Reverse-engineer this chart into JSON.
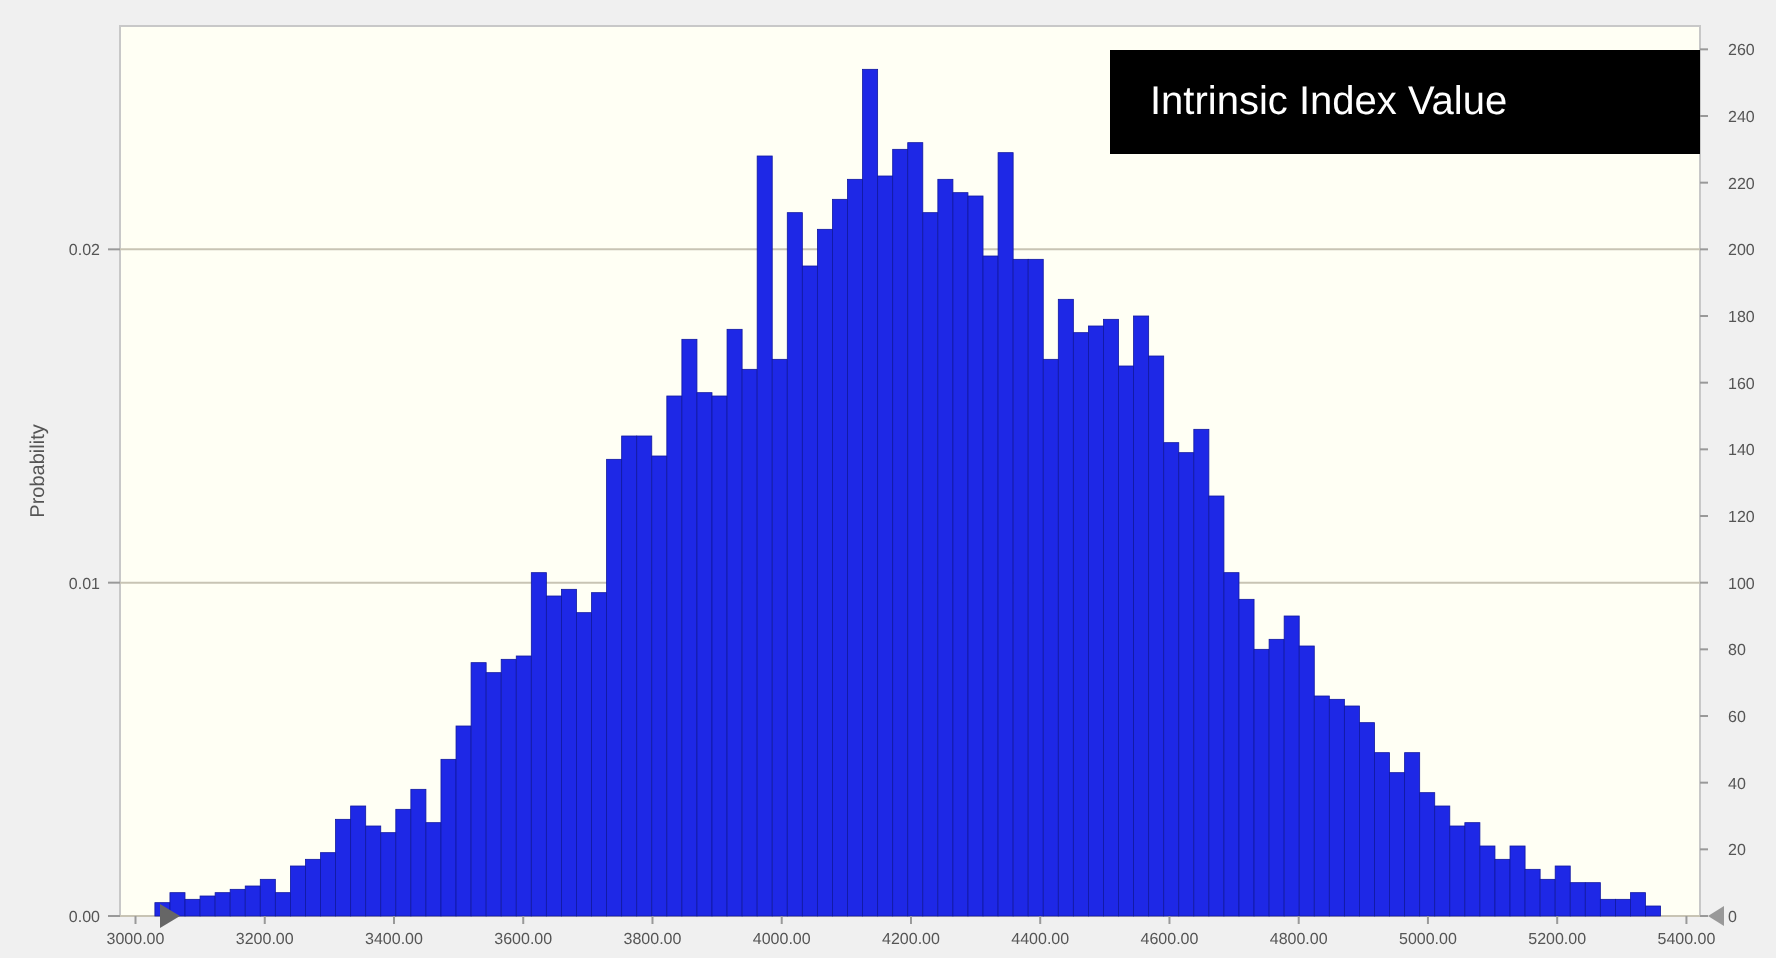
{
  "chart_data": {
    "type": "histogram",
    "title": "Intrinsic Index Value",
    "ylabel": "Probability",
    "color": "#1e28e6",
    "bins": [
      3030,
      3053.3,
      3076.6,
      3099.9,
      3123.2,
      3146.5,
      3169.8,
      3193.1,
      3216.4,
      3239.7,
      3263,
      3286.3,
      3309.6,
      3332.9,
      3356.2,
      3379.5,
      3402.8,
      3426.1,
      3449.4,
      3472.7,
      3496,
      3519.3,
      3542.6,
      3565.9,
      3589.2,
      3612.5,
      3635.8,
      3659.1,
      3682.4,
      3705.7,
      3729,
      3752.3,
      3775.6,
      3798.9,
      3822.2,
      3845.5,
      3868.8,
      3892.1,
      3915.4,
      3938.7,
      3962,
      3985.3,
      4008.6,
      4031.9,
      4055.2,
      4078.5,
      4101.8,
      4125.1,
      4148.4,
      4171.7,
      4195,
      4218.3,
      4241.6,
      4264.9,
      4288.2,
      4311.5,
      4334.8,
      4358.1,
      4381.4,
      4404.7,
      4428,
      4451.3,
      4474.6,
      4497.9,
      4521.2,
      4544.5,
      4567.8,
      4591.1,
      4614.4,
      4637.7,
      4661,
      4684.3,
      4707.6,
      4730.9,
      4754.2,
      4777.5,
      4800.8,
      4824.1,
      4847.4,
      4870.7,
      4894,
      4917.3,
      4940.6,
      4963.9,
      4987.2,
      5010.5,
      5033.8,
      5057.1,
      5080.4,
      5103.7,
      5127,
      5150.3,
      5173.6,
      5196.9,
      5220.2,
      5243.5,
      5266.8,
      5290.1,
      5313.4,
      5336.7,
      5360
    ],
    "values": [
      0.0004,
      0.0007,
      0.0005,
      0.0006,
      0.0007,
      0.0008,
      0.0009,
      0.0011,
      0.0007,
      0.0015,
      0.0017,
      0.0019,
      0.0029,
      0.0033,
      0.0027,
      0.0025,
      0.0032,
      0.0038,
      0.0028,
      0.0047,
      0.0057,
      0.0076,
      0.0073,
      0.0077,
      0.0078,
      0.0103,
      0.0096,
      0.0098,
      0.0091,
      0.0097,
      0.0137,
      0.0144,
      0.0144,
      0.0138,
      0.0156,
      0.0173,
      0.0157,
      0.0156,
      0.0176,
      0.0164,
      0.0228,
      0.0167,
      0.0211,
      0.0195,
      0.0206,
      0.0215,
      0.0221,
      0.0254,
      0.0222,
      0.023,
      0.0232,
      0.0211,
      0.0221,
      0.0217,
      0.0216,
      0.0198,
      0.0229,
      0.0197,
      0.0197,
      0.0167,
      0.0185,
      0.0175,
      0.0177,
      0.0179,
      0.0165,
      0.018,
      0.0168,
      0.0142,
      0.0139,
      0.0146,
      0.0126,
      0.0103,
      0.0095,
      0.008,
      0.0083,
      0.009,
      0.0081,
      0.0066,
      0.0065,
      0.0063,
      0.0058,
      0.0049,
      0.0043,
      0.0049,
      0.0037,
      0.0033,
      0.0027,
      0.0028,
      0.0021,
      0.0017,
      0.0021,
      0.0014,
      0.0011,
      0.0015,
      0.001,
      0.001,
      0.0005,
      0.0005,
      0.0007,
      0.0003
    ],
    "xlim": [
      2976,
      5421
    ],
    "xticks": [
      {
        "value": 3000,
        "label": "3000.00"
      },
      {
        "value": 3200,
        "label": "3200.00"
      },
      {
        "value": 3400,
        "label": "3400.00"
      },
      {
        "value": 3600,
        "label": "3600.00"
      },
      {
        "value": 3800,
        "label": "3800.00"
      },
      {
        "value": 4000,
        "label": "4000.00"
      },
      {
        "value": 4200,
        "label": "4200.00"
      },
      {
        "value": 4400,
        "label": "4400.00"
      },
      {
        "value": 4600,
        "label": "4600.00"
      },
      {
        "value": 4800,
        "label": "4800.00"
      },
      {
        "value": 5000,
        "label": "5000.00"
      },
      {
        "value": 5200,
        "label": "5200.00"
      },
      {
        "value": 5400,
        "label": "5400.00"
      }
    ],
    "ylim": [
      0,
      0.0267
    ],
    "yticks": [
      {
        "value": 0,
        "label": "0.00"
      },
      0.01,
      0.02
    ],
    "y2lim": [
      0,
      267
    ],
    "y2ticks": [
      0,
      20,
      40,
      60,
      80,
      100,
      120,
      140,
      160,
      180,
      200,
      220,
      240,
      260
    ],
    "grid": "y"
  }
}
